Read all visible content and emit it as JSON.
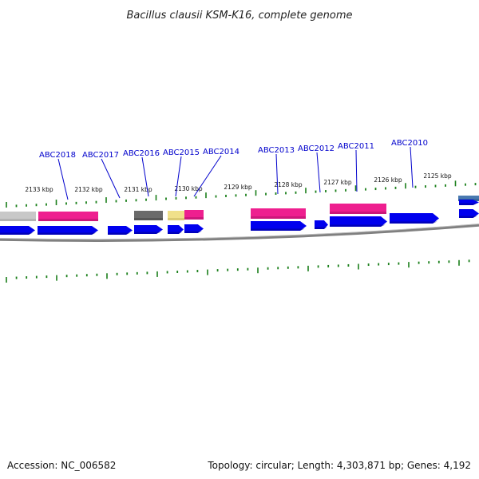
{
  "title": "Bacillus clausii KSM-K16, complete genome",
  "kbp_ticks": [
    {
      "label": "2133 kbp"
    },
    {
      "label": "2132 kbp"
    },
    {
      "label": "2131 kbp"
    },
    {
      "label": "2130 kbp"
    },
    {
      "label": "2129 kbp"
    },
    {
      "label": "2128 kbp"
    },
    {
      "label": "2127 kbp"
    },
    {
      "label": "2126 kbp"
    },
    {
      "label": "2125 kbp"
    }
  ],
  "gene_labels": [
    {
      "label": "ABC2018"
    },
    {
      "label": "ABC2017"
    },
    {
      "label": "ABC2016"
    },
    {
      "label": "ABC2015"
    },
    {
      "label": "ABC2014"
    },
    {
      "label": "ABC2013"
    },
    {
      "label": "ABC2012"
    },
    {
      "label": "ABC2011"
    },
    {
      "label": "ABC2010"
    }
  ],
  "colors": {
    "cds": "#0000ee",
    "feature_pink": "#ee1f8f",
    "feature_gray": "#6a6a6a",
    "feature_lightgray": "#c8c8c8",
    "feature_yellow": "#f0e08a",
    "tick": "#1a7f1a",
    "label": "#0000cc"
  },
  "footer": {
    "accession": "Accession: NC_006582",
    "topology": "Topology: circular; Length: 4,303,871 bp; Genes: 4,192"
  }
}
